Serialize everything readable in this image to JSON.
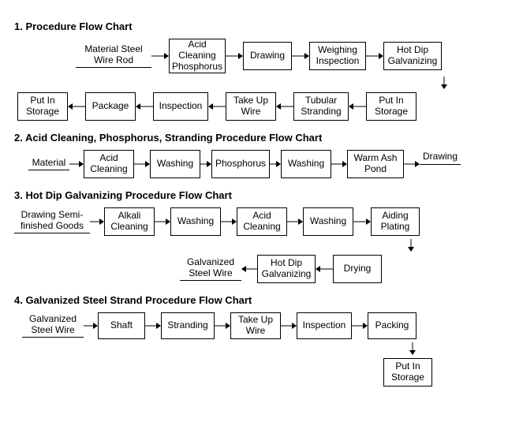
{
  "colors": {
    "fg": "#000000",
    "bg": "#ffffff"
  },
  "box_defaults": {
    "width": 68,
    "height": 38,
    "fontsize": 11
  },
  "arrow_defaults": {
    "length": 22,
    "stroke_width": 1
  },
  "sections": {
    "s1": {
      "title": "1. Procedure Flow Chart",
      "input_label": "Material Steel\nWire Rod",
      "r1": [
        "Acid\nCleaning\nPhosphorus",
        "Drawing",
        "Weighing\nInspection",
        "Hot Dip\nGalvanizing"
      ],
      "r2": [
        "Put In\nStorage",
        "Package",
        "Inspection",
        "Take Up\nWire",
        "Tubular\nStranding",
        "Put In\nStorage"
      ]
    },
    "s2": {
      "title": "2. Acid Cleaning, Phosphorus, Stranding Procedure Flow Chart",
      "input_label": "Material",
      "r1": [
        "Acid\nCleaning",
        "Washing",
        "Phosphorus",
        "Washing",
        "Warm Ash\nPond"
      ],
      "output_label": "Drawing"
    },
    "s3": {
      "title": "3. Hot Dip Galvanizing Procedure Flow Chart",
      "input_label": "Drawing Semi-\nfinished Goods",
      "r1": [
        "Alkali\nCleaning",
        "Washing",
        "Acid\nCleaning",
        "Washing",
        "Aiding\nPlating"
      ],
      "r2_out": "Galvanized\nSteel Wire",
      "r2": [
        "Hot Dip\nGalvanizing",
        "Drying"
      ]
    },
    "s4": {
      "title": "4. Galvanized Steel Strand Procedure Flow Chart",
      "input_label": "Galvanized\nSteel Wire",
      "r1": [
        "Shaft",
        "Stranding",
        "Take Up\nWire",
        "Inspection",
        "Packing"
      ],
      "r2": [
        "Put In\nStorage"
      ]
    }
  }
}
